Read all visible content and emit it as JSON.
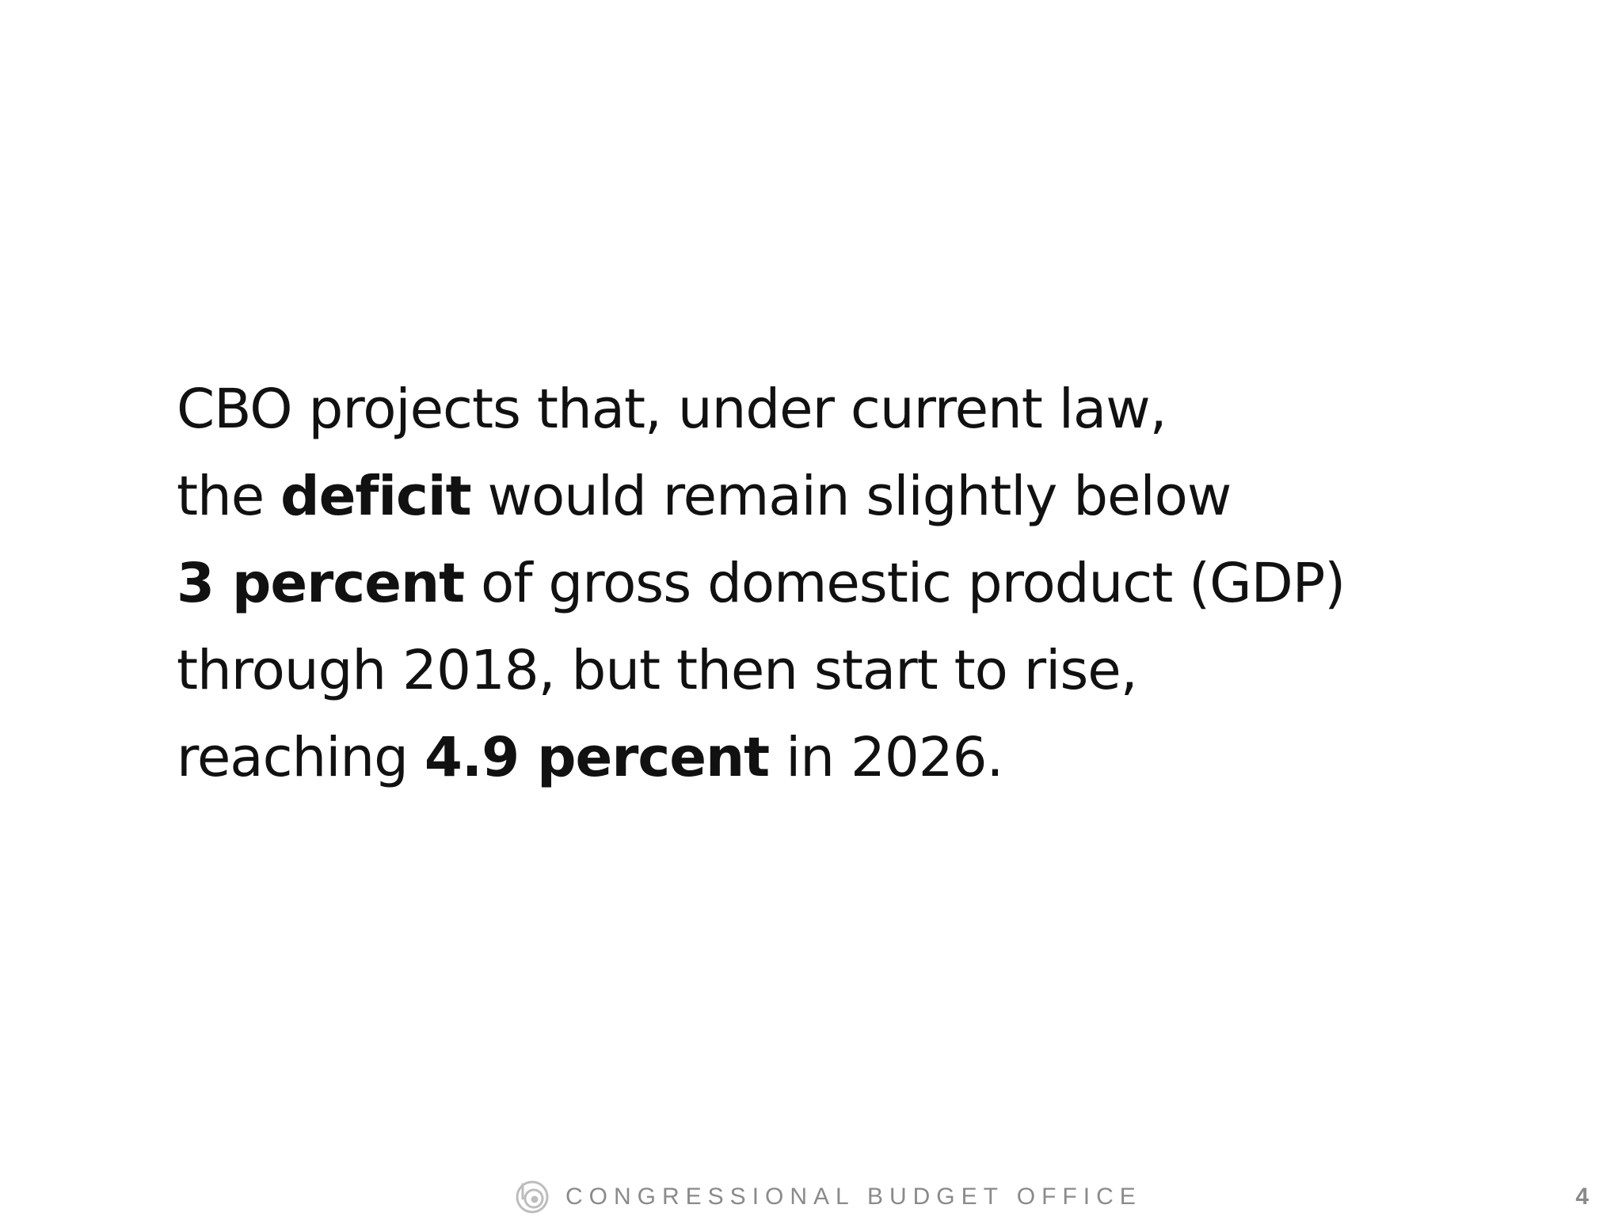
{
  "slide": {
    "lines": [
      [
        {
          "text": "CBO projects that, under current law,",
          "bold": false
        }
      ],
      [
        {
          "text": "the ",
          "bold": false
        },
        {
          "text": "deficit",
          "bold": true
        },
        {
          "text": " would remain slightly below",
          "bold": false
        }
      ],
      [
        {
          "text": "3 percent",
          "bold": true
        },
        {
          "text": " of gross domestic product (GDP)",
          "bold": false
        }
      ],
      [
        {
          "text": "through 2018, but then start to rise,",
          "bold": false
        }
      ],
      [
        {
          "text": "reaching ",
          "bold": false
        },
        {
          "text": "4.9 percent",
          "bold": true
        },
        {
          "text": " in 2026.",
          "bold": false
        }
      ]
    ]
  },
  "footer": {
    "organization": "CONGRESSIONAL BUDGET OFFICE",
    "logo_icon": "cbo-logo-icon",
    "page_number": "4"
  },
  "colors": {
    "text": "#111111",
    "footer": "#8a8a8a",
    "background": "#ffffff"
  }
}
